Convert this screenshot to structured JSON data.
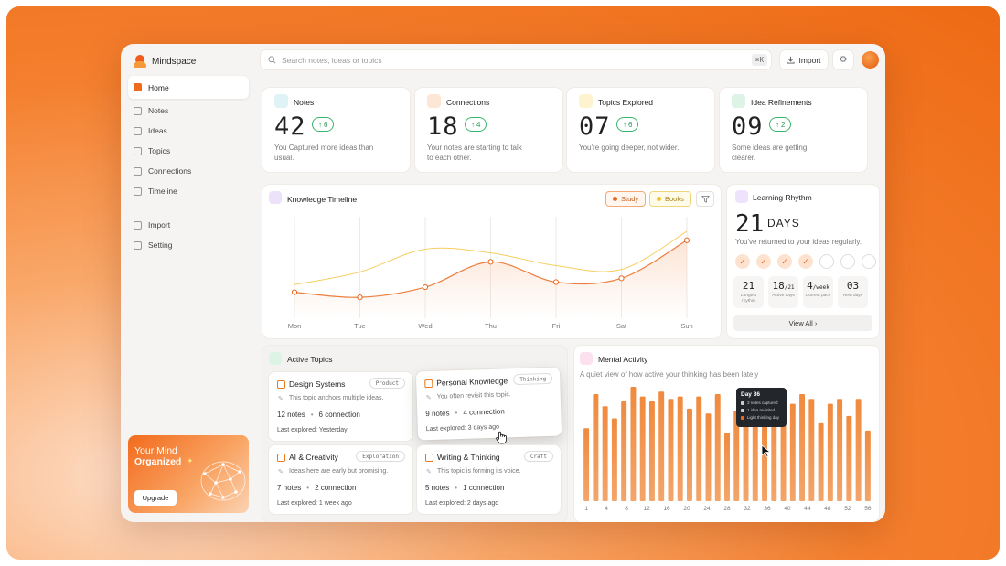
{
  "app": {
    "name": "Mindspace"
  },
  "nav": {
    "main": [
      {
        "label": "Home",
        "icon": "home-icon",
        "active": true
      },
      {
        "label": "Notes",
        "icon": "notes-icon"
      },
      {
        "label": "Ideas",
        "icon": "lightbulb-icon"
      },
      {
        "label": "Topics",
        "icon": "topics-icon"
      },
      {
        "label": "Connections",
        "icon": "link-icon"
      },
      {
        "label": "Timeline",
        "icon": "timeline-icon"
      }
    ],
    "secondary": [
      {
        "label": "Import",
        "icon": "upload-icon"
      },
      {
        "label": "Setting",
        "icon": "gear-icon"
      }
    ]
  },
  "promo": {
    "line1": "Your Mind",
    "line2": "Organized",
    "button": "Upgrade"
  },
  "search": {
    "placeholder": "Search notes, ideas or topics",
    "shortcut": "⌘K"
  },
  "topbar": {
    "import_label": "Import"
  },
  "stats": [
    {
      "title": "Notes",
      "value": "42",
      "delta": "6",
      "desc": "You Captured more ideas than usual.",
      "color": "#dff3f7",
      "icon": "notes-icon"
    },
    {
      "title": "Connections",
      "value": "18",
      "delta": "4",
      "desc": "Your notes are starting to talk to each other.",
      "color": "#fde6d5",
      "icon": "link-icon"
    },
    {
      "title": "Topics Explored",
      "value": "07",
      "delta": "6",
      "desc": "You're going deeper, not wider.",
      "color": "#fdf3cf",
      "icon": "topics-icon"
    },
    {
      "title": "Idea Refinements",
      "value": "09",
      "delta": "2",
      "desc": "Some ideas are getting clearer.",
      "color": "#dcf3e6",
      "icon": "pencil-icon"
    }
  ],
  "timeline": {
    "title": "Knowledge Timeline",
    "legend": [
      {
        "label": "Study",
        "color": "#e9681e"
      },
      {
        "label": "Books",
        "color": "#f2c23a"
      }
    ],
    "days": [
      "Mon",
      "Tue",
      "Wed",
      "Thu",
      "Fri",
      "Sat",
      "Sun"
    ]
  },
  "chart_data": {
    "type": "line",
    "x": [
      "Mon",
      "Tue",
      "Wed",
      "Thu",
      "Fri",
      "Sat",
      "Sun"
    ],
    "series": [
      {
        "name": "Study",
        "values": [
          44,
          40,
          48,
          68,
          52,
          55,
          85
        ]
      },
      {
        "name": "Books",
        "values": [
          50,
          60,
          78,
          75,
          65,
          62,
          92
        ]
      }
    ],
    "xlabel": "",
    "ylabel": "",
    "grid": "vertical"
  },
  "rhythm": {
    "title": "Learning Rhythm",
    "value": "21",
    "unit": "DAYS",
    "desc": "You've returned to your ideas regularly.",
    "checks": [
      true,
      true,
      true,
      true,
      false,
      false,
      false
    ],
    "stats": [
      {
        "value": "21",
        "suffix": "",
        "label": "Longest rhythm"
      },
      {
        "value": "18",
        "suffix": "/21",
        "label": "Active days"
      },
      {
        "value": "4",
        "suffix": "/week",
        "label": "Current pace"
      },
      {
        "value": "03",
        "suffix": "",
        "label": "Rest days"
      }
    ],
    "view_all": "View All ›"
  },
  "topics": {
    "title": "Active Topics",
    "items": [
      {
        "name": "Design Systems",
        "tag": "Product",
        "desc": "This topic anchors multiple ideas.",
        "notes": "12 notes",
        "connections": "6 connection",
        "last": "Last explored: Yesterday"
      },
      {
        "name": "Personal Knowledge",
        "tag": "Thinking",
        "desc": "You often revisit this topic.",
        "notes": "9 notes",
        "connections": "4 connection",
        "last": "Last explored: 3 days ago"
      },
      {
        "name": "AI & Creativity",
        "tag": "Exploration",
        "desc": "Ideas here are early but promising.",
        "notes": "7 notes",
        "connections": "2 connection",
        "last": "Last explored: 1 week ago"
      },
      {
        "name": "Writing & Thinking",
        "tag": "Craft",
        "desc": "This topic is forming its voice.",
        "notes": "5 notes",
        "connections": "1 connection",
        "last": "Last explored: 2 days ago"
      }
    ]
  },
  "activity": {
    "title": "Mental Activity",
    "subtitle": "A quiet view of how active your thinking has been lately",
    "x_ticks": [
      "1",
      "4",
      "8",
      "12",
      "16",
      "20",
      "24",
      "28",
      "32",
      "36",
      "40",
      "44",
      "48",
      "52",
      "56"
    ],
    "bars": [
      0.6,
      0.88,
      0.78,
      0.68,
      0.82,
      0.94,
      0.86,
      0.82,
      0.9,
      0.84,
      0.86,
      0.76,
      0.86,
      0.72,
      0.88,
      0.56,
      0.74,
      0.88,
      0.8,
      0.62,
      0.88,
      0.86,
      0.8,
      0.88,
      0.84,
      0.64,
      0.8,
      0.84,
      0.7,
      0.84,
      0.58
    ],
    "tooltip": {
      "title": "Day 36",
      "rows": [
        {
          "text": "3 notes captured",
          "color": "#cccccc"
        },
        {
          "text": "1 idea revisited",
          "color": "#cccccc"
        },
        {
          "text": "Light thinking day",
          "color": "#e9681e"
        }
      ]
    }
  }
}
